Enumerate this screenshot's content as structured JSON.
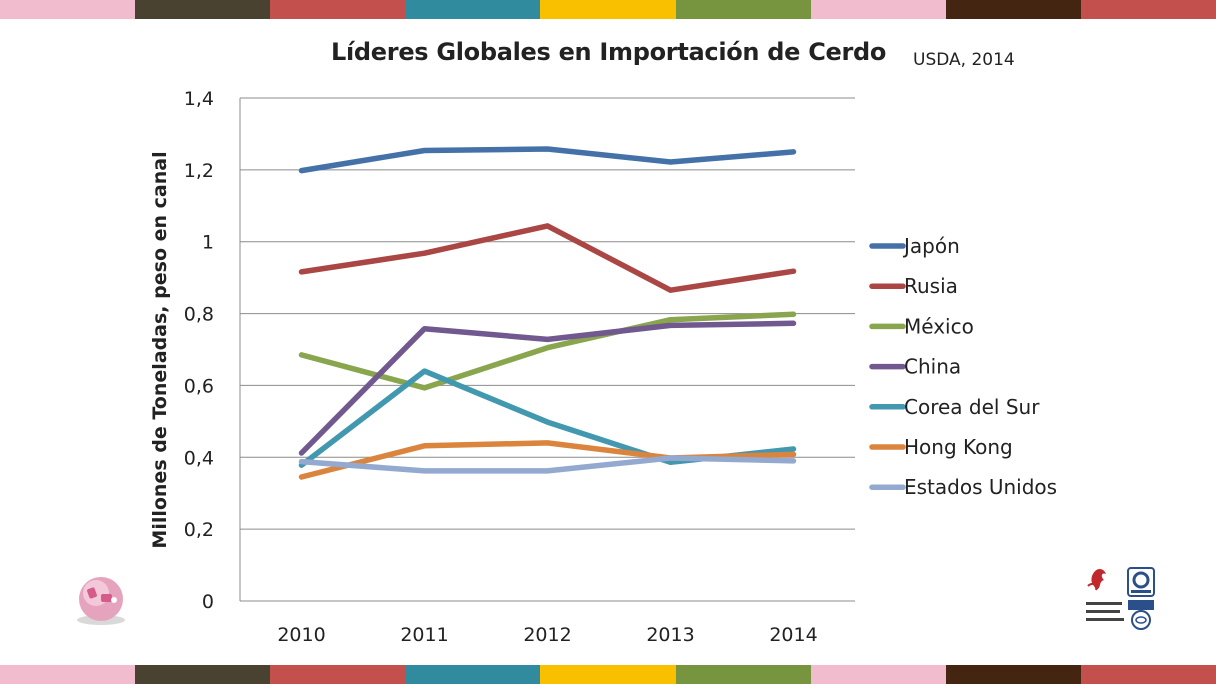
{
  "stripe_colors": [
    "#f2bccf",
    "#4a4230",
    "#c4504d",
    "#318b9e",
    "#f9c000",
    "#76953e",
    "#f2bccf",
    "#442511",
    "#c4504d"
  ],
  "title": "Líderes Globales en Importación de Cerdo",
  "source": "USDA, 2014",
  "icons": {
    "left_logo": "pig-logo-icon",
    "right_logo": "association-certification-logos-icon"
  },
  "chart_data": {
    "type": "line",
    "title": "Líderes Globales en Importación de Cerdo",
    "xlabel": "",
    "ylabel": "Millones de Toneladas, peso en canal",
    "x": [
      "2010",
      "2011",
      "2012",
      "2013",
      "2014"
    ],
    "y_ticks": [
      "0",
      "0,2",
      "0,4",
      "0,6",
      "0,8",
      "1",
      "1,2",
      "1,4"
    ],
    "ylim": [
      0,
      1.4
    ],
    "grid": "horizontal",
    "legend_position": "right",
    "series": [
      {
        "name": "Japón",
        "color": "#4472a8",
        "values": [
          1.198,
          1.254,
          1.258,
          1.222,
          1.25
        ]
      },
      {
        "name": "Rusia",
        "color": "#aa4643",
        "values": [
          0.916,
          0.968,
          1.044,
          0.865,
          0.918
        ]
      },
      {
        "name": "México",
        "color": "#89a54e",
        "values": [
          0.685,
          0.593,
          0.705,
          0.783,
          0.798
        ]
      },
      {
        "name": "China",
        "color": "#71588f",
        "values": [
          0.412,
          0.758,
          0.728,
          0.767,
          0.773
        ]
      },
      {
        "name": "Corea del Sur",
        "color": "#4198af",
        "values": [
          0.378,
          0.64,
          0.498,
          0.386,
          0.423
        ]
      },
      {
        "name": "Hong Kong",
        "color": "#db843d",
        "values": [
          0.345,
          0.432,
          0.44,
          0.398,
          0.408
        ]
      },
      {
        "name": "Estados Unidos",
        "color": "#93a9cf",
        "values": [
          0.388,
          0.362,
          0.362,
          0.398,
          0.39
        ]
      }
    ]
  }
}
